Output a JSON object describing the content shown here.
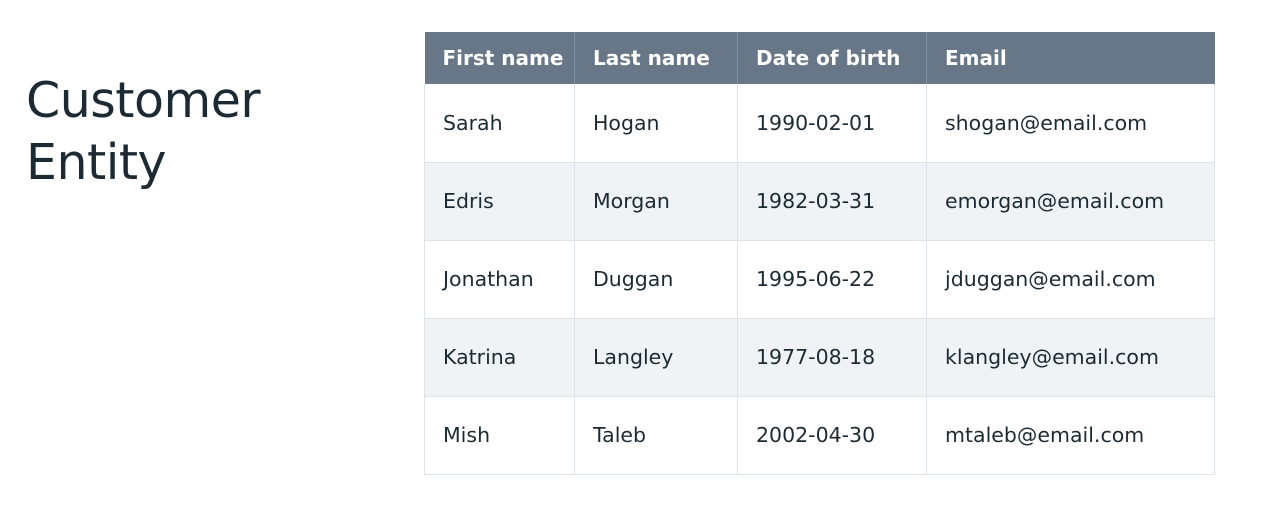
{
  "title": {
    "line1": "Customer",
    "line2": "Entity"
  },
  "table": {
    "headers": [
      "First name",
      "Last name",
      "Date of birth",
      "Email"
    ],
    "rows": [
      [
        "Sarah",
        "Hogan",
        "1990-02-01",
        "shogan@email.com"
      ],
      [
        "Edris",
        "Morgan",
        "1982-03-31",
        "emorgan@email.com"
      ],
      [
        "Jonathan",
        "Duggan",
        "1995-06-22",
        "jduggan@email.com"
      ],
      [
        "Katrina",
        "Langley",
        "1977-08-18",
        "klangley@email.com"
      ],
      [
        "Mish",
        "Taleb",
        "2002-04-30",
        "mtaleb@email.com"
      ]
    ]
  },
  "colors": {
    "header_bg": "#677788",
    "row_alt_bg": "#f0f3f5",
    "text": "#1c2b33"
  }
}
